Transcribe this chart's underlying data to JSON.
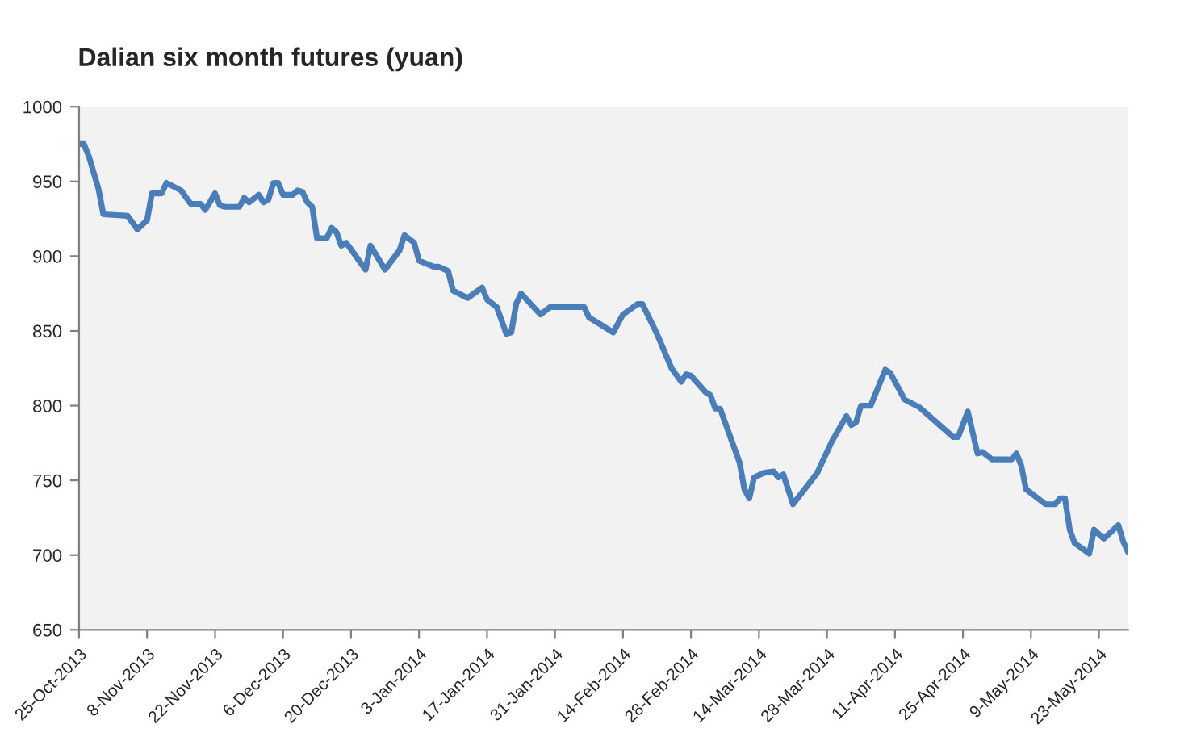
{
  "chart_data": {
    "type": "line",
    "title": "Dalian six month futures (yuan)",
    "x": [
      "2013-10-25",
      "2013-10-26",
      "2013-10-27",
      "2013-10-29",
      "2013-10-30",
      "2013-11-04",
      "2013-11-06",
      "2013-11-08",
      "2013-11-09",
      "2013-11-11",
      "2013-11-12",
      "2013-11-15",
      "2013-11-17",
      "2013-11-19",
      "2013-11-20",
      "2013-11-22",
      "2013-11-23",
      "2013-11-24",
      "2013-11-27",
      "2013-11-28",
      "2013-11-29",
      "2013-12-01",
      "2013-12-02",
      "2013-12-03",
      "2013-12-04",
      "2013-12-05",
      "2013-12-06",
      "2013-12-08",
      "2013-12-09",
      "2013-12-10",
      "2013-12-11",
      "2013-12-12",
      "2013-12-13",
      "2013-12-15",
      "2013-12-16",
      "2013-12-17",
      "2013-12-18",
      "2013-12-19",
      "2013-12-23",
      "2013-12-24",
      "2013-12-27",
      "2013-12-30",
      "2013-12-31",
      "2014-01-02",
      "2014-01-03",
      "2014-01-06",
      "2014-01-07",
      "2014-01-09",
      "2014-01-10",
      "2014-01-13",
      "2014-01-16",
      "2014-01-17",
      "2014-01-19",
      "2014-01-21",
      "2014-01-22",
      "2014-01-23",
      "2014-01-24",
      "2014-01-28",
      "2014-01-30",
      "2014-02-06",
      "2014-02-07",
      "2014-02-09",
      "2014-02-12",
      "2014-02-14",
      "2014-02-17",
      "2014-02-18",
      "2014-02-21",
      "2014-02-24",
      "2014-02-26",
      "2014-02-27",
      "2014-02-28",
      "2014-03-03",
      "2014-03-04",
      "2014-03-05",
      "2014-03-06",
      "2014-03-10",
      "2014-03-11",
      "2014-03-12",
      "2014-03-13",
      "2014-03-15",
      "2014-03-17",
      "2014-03-18",
      "2014-03-19",
      "2014-03-21",
      "2014-03-26",
      "2014-03-29",
      "2014-04-01",
      "2014-04-02",
      "2014-04-03",
      "2014-04-04",
      "2014-04-06",
      "2014-04-09",
      "2014-04-10",
      "2014-04-13",
      "2014-04-16",
      "2014-04-23",
      "2014-04-24",
      "2014-04-26",
      "2014-04-28",
      "2014-04-29",
      "2014-05-01",
      "2014-05-05",
      "2014-05-06",
      "2014-05-07",
      "2014-05-08",
      "2014-05-12",
      "2014-05-14",
      "2014-05-15",
      "2014-05-16",
      "2014-05-17",
      "2014-05-18",
      "2014-05-21",
      "2014-05-22",
      "2014-05-24",
      "2014-05-27",
      "2014-05-28",
      "2014-05-29"
    ],
    "series": [
      {
        "color": "#4a7ebb",
        "values": [
          975,
          975,
          967,
          945,
          928,
          927,
          918,
          924,
          942,
          942,
          949,
          944,
          935,
          935,
          931,
          942,
          934,
          933,
          933,
          939,
          936,
          941,
          936,
          938,
          949,
          949,
          941,
          941,
          944,
          943,
          936,
          933,
          912,
          912,
          919,
          916,
          907,
          909,
          891,
          907,
          891,
          904,
          914,
          909,
          897,
          893,
          893,
          890,
          877,
          872,
          879,
          871,
          866,
          848,
          849,
          868,
          875,
          861,
          866,
          866,
          859,
          855,
          849,
          861,
          868,
          868,
          848,
          825,
          816,
          821,
          820,
          809,
          807,
          798,
          798,
          762,
          744,
          738,
          752,
          755,
          756,
          752,
          754,
          734,
          755,
          776,
          793,
          787,
          789,
          800,
          800,
          824,
          822,
          804,
          799,
          779,
          779,
          796,
          768,
          769,
          764,
          764,
          768,
          760,
          744,
          734,
          734,
          738,
          738,
          717,
          708,
          701,
          717,
          711,
          720,
          709,
          702
        ]
      }
    ],
    "xlim": [
      "2013-10-25",
      "2014-05-29"
    ],
    "xticks": [
      {
        "value": "2013-10-25",
        "label": "25-Oct-2013"
      },
      {
        "value": "2013-11-08",
        "label": "8-Nov-2013"
      },
      {
        "value": "2013-11-22",
        "label": "22-Nov-2013"
      },
      {
        "value": "2013-12-06",
        "label": "6-Dec-2013"
      },
      {
        "value": "2013-12-20",
        "label": "20-Dec-2013"
      },
      {
        "value": "2014-01-03",
        "label": "3-Jan-2014"
      },
      {
        "value": "2014-01-17",
        "label": "17-Jan-2014"
      },
      {
        "value": "2014-01-31",
        "label": "31-Jan-2014"
      },
      {
        "value": "2014-02-14",
        "label": "14-Feb-2014"
      },
      {
        "value": "2014-02-28",
        "label": "28-Feb-2014"
      },
      {
        "value": "2014-03-14",
        "label": "14-Mar-2014"
      },
      {
        "value": "2014-03-28",
        "label": "28-Mar-2014"
      },
      {
        "value": "2014-04-11",
        "label": "11-Apr-2014"
      },
      {
        "value": "2014-04-25",
        "label": "25-Apr-2014"
      },
      {
        "value": "2014-05-09",
        "label": "9-May-2014"
      },
      {
        "value": "2014-05-23",
        "label": "23-May-2014"
      }
    ],
    "ylim": [
      650,
      1000
    ],
    "yticks": [
      650,
      700,
      750,
      800,
      850,
      900,
      950,
      1000
    ],
    "grid": false,
    "marker": "none",
    "line_style": "solid"
  }
}
